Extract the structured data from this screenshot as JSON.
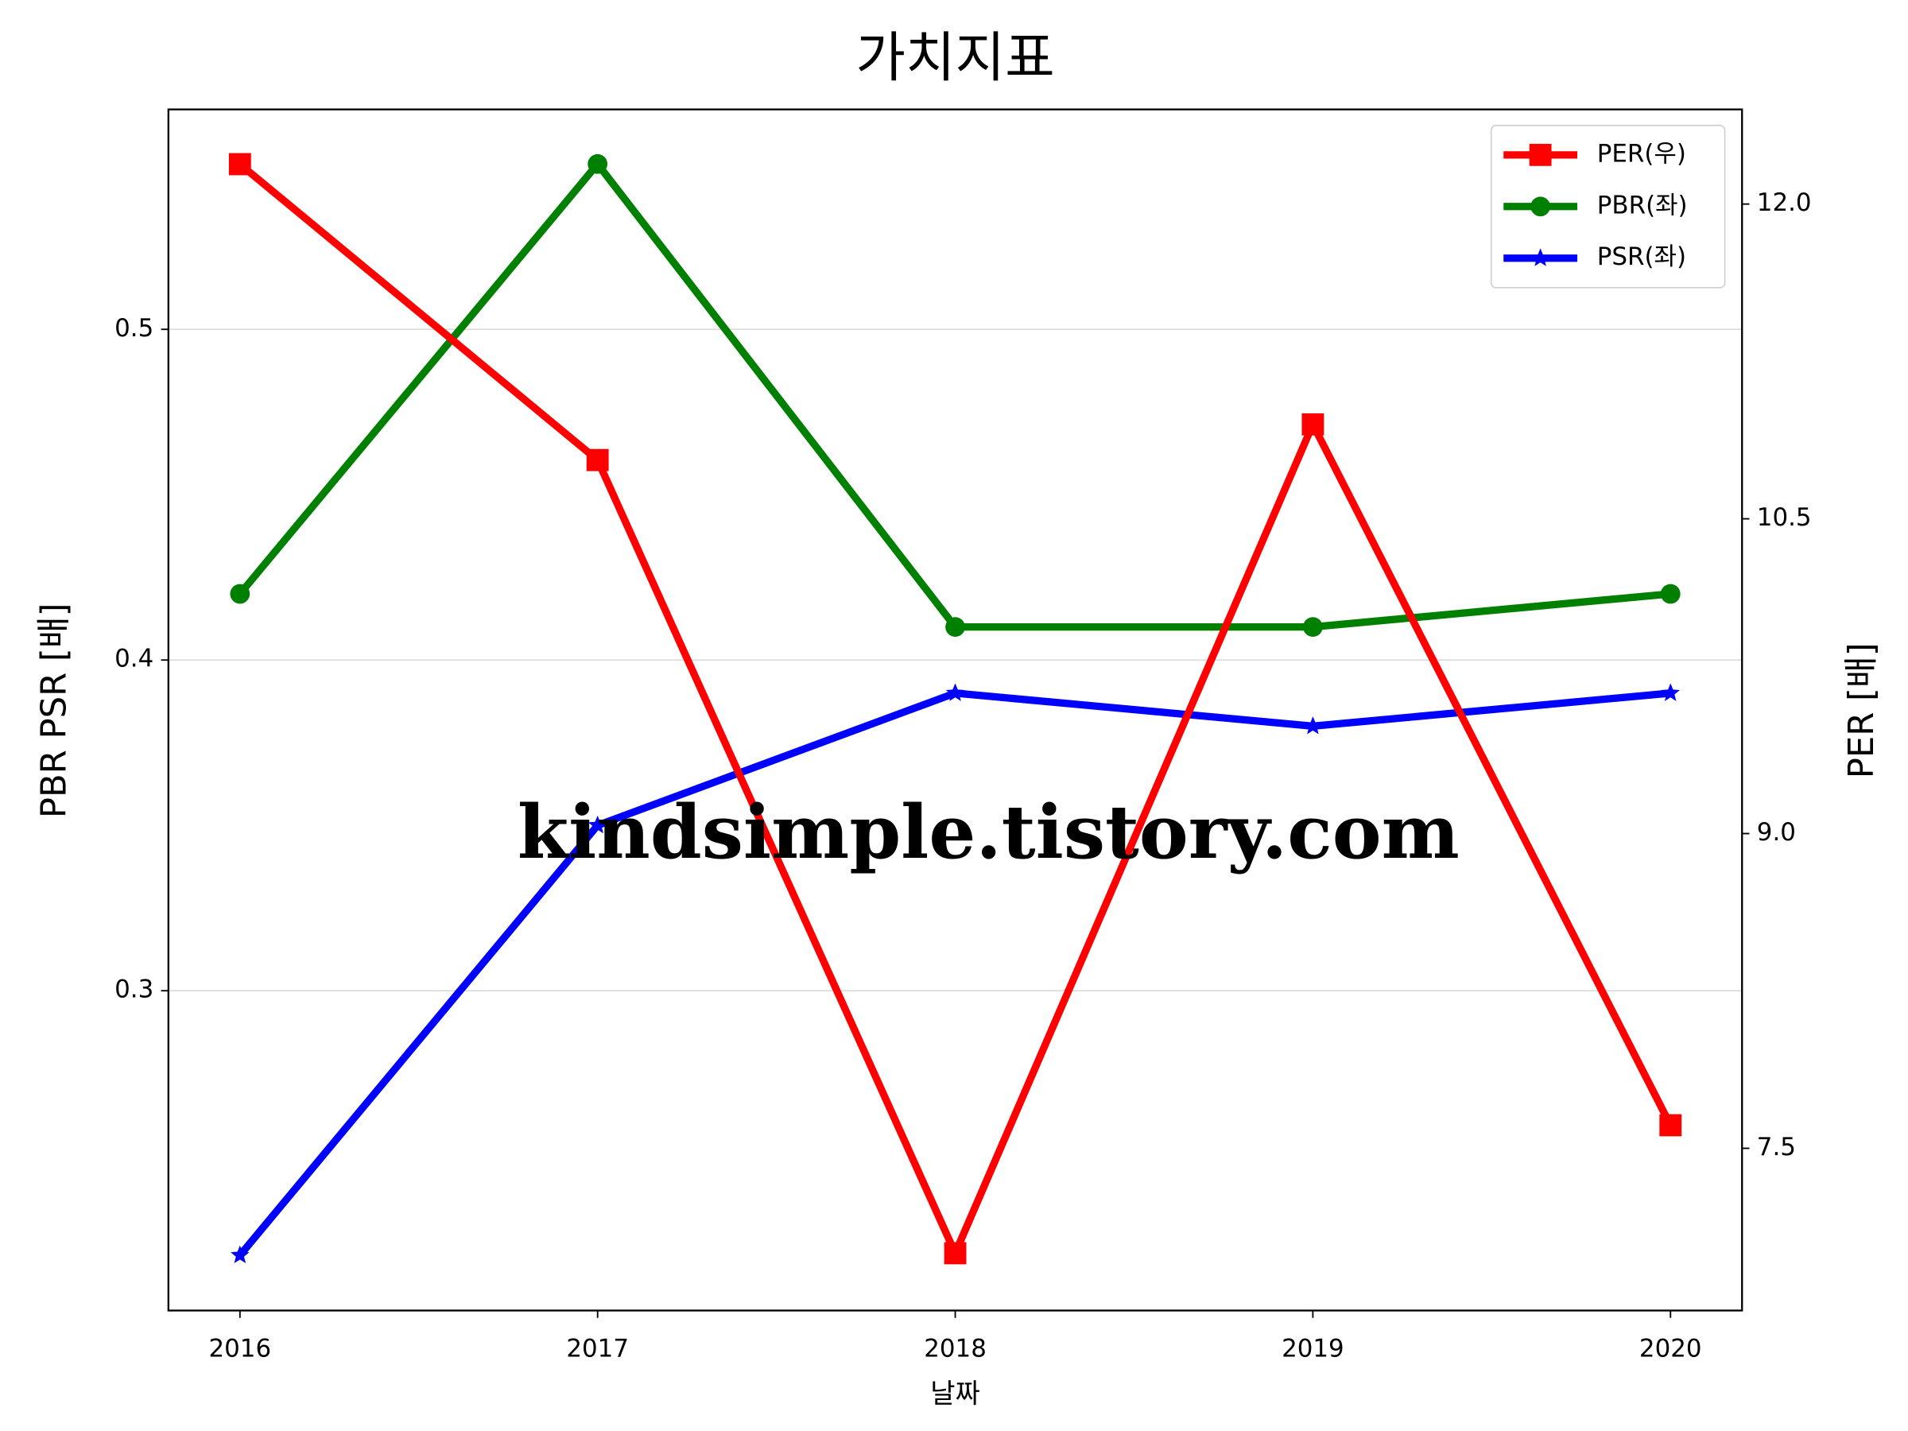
{
  "chart_data": {
    "type": "line",
    "title": "가치지표",
    "xlabel": "날짜",
    "ylabel": "PBR PSR [배]",
    "ylabel_color": "#008000",
    "y2label": "PER [배]",
    "y2label_color": "#ff0000",
    "watermark": "kindsimple.tistory.com",
    "watermark_color": "#e2a8ea",
    "x": [
      2016,
      2017,
      2018,
      2019,
      2020
    ],
    "xlim": [
      2015.8,
      2020.2
    ],
    "xticks": [
      2016,
      2017,
      2018,
      2019,
      2020
    ],
    "ylim": [
      0.2033,
      0.5665
    ],
    "yticks": [
      0.3,
      0.4,
      0.5
    ],
    "y2lim": [
      6.727,
      12.451
    ],
    "y2ticks": [
      7.5,
      9.0,
      10.5,
      12.0
    ],
    "grid": true,
    "legend": "upper right",
    "series": [
      {
        "name": "PER(우)",
        "color": "#ff0000",
        "marker": "square",
        "axis": "y2",
        "values": [
          12.19,
          10.78,
          7.0,
          10.95,
          7.61
        ]
      },
      {
        "name": "PBR(좌)",
        "color": "#008000",
        "marker": "circle",
        "values": [
          0.42,
          0.55,
          0.41,
          0.41,
          0.42
        ]
      },
      {
        "name": "PSR(좌)",
        "color": "#0000ff",
        "marker": "star",
        "values": [
          0.22,
          0.35,
          0.39,
          0.38,
          0.39
        ]
      }
    ]
  }
}
